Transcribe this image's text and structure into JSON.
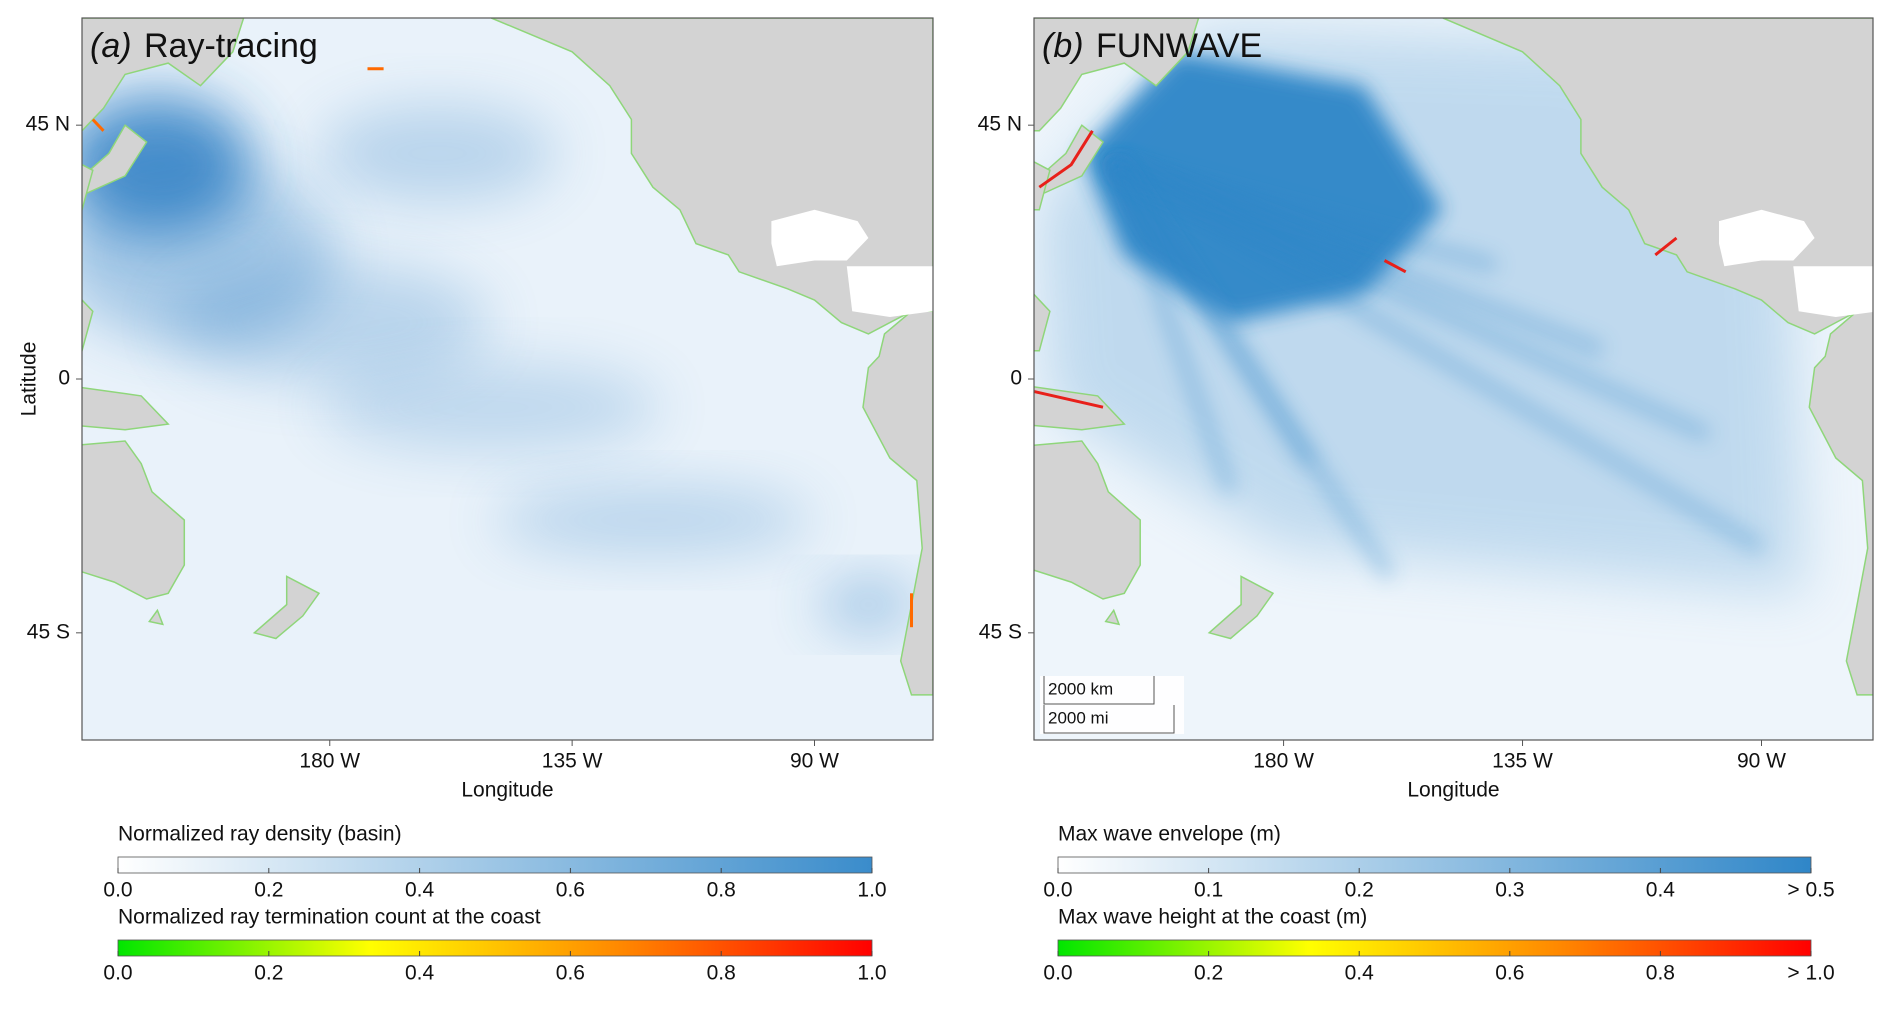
{
  "panels": [
    {
      "label": "(a)",
      "title": "Ray-tracing",
      "x_label": "Longitude",
      "y_label": "Latitude",
      "xlim": [
        -226,
        -68
      ],
      "ylim": [
        -64,
        64
      ],
      "xticks": [
        {
          "value": -180,
          "label": "180 W"
        },
        {
          "value": -135,
          "label": "135 W"
        },
        {
          "value": -90,
          "label": "90 W"
        }
      ],
      "yticks": [
        {
          "value": 45,
          "label": "45 N"
        },
        0,
        {
          "value": -45,
          "label": "45 S"
        }
      ],
      "colorbars": [
        {
          "title": "Normalized ray density (basin)",
          "range": [
            0,
            1
          ],
          "colors": [
            "#ffffff",
            "#3a8ccb"
          ],
          "ticks": [
            {
              "value": 0,
              "label": "0.0"
            },
            0.2,
            0.4,
            0.6,
            0.8,
            {
              "value": 1,
              "label": "1.0"
            }
          ]
        },
        {
          "title": "Normalized ray termination count at the coast",
          "range": [
            0,
            1
          ],
          "colors": [
            "#00e600",
            "#ffff00",
            "#ff8800",
            "#ff0000"
          ],
          "ticks": [
            {
              "value": 0,
              "label": "0.0"
            },
            0.2,
            0.4,
            0.6,
            0.8,
            {
              "value": 1,
              "label": "1.0"
            }
          ]
        }
      ]
    },
    {
      "label": "(b)",
      "title": "FUNWAVE",
      "x_label": "Longitude",
      "xlim": [
        -227,
        -69
      ],
      "ylim": [
        -64,
        64
      ],
      "xticks": [
        {
          "value": -180,
          "label": "180 W"
        },
        {
          "value": -135,
          "label": "135 W"
        },
        {
          "value": -90,
          "label": "90 W"
        }
      ],
      "yticks": [
        {
          "value": 45,
          "label": "45 N"
        },
        0,
        {
          "value": -45,
          "label": "45 S"
        }
      ],
      "scale_bar": [
        "2000 km",
        "2000 mi"
      ],
      "colorbars": [
        {
          "title": "Max wave envelope (m)",
          "range": [
            0,
            0.5
          ],
          "colors": [
            "#ffffff",
            "#2f86c8"
          ],
          "ticks": [
            {
              "value": 0,
              "label": "0.0"
            },
            0.1,
            0.2,
            0.3,
            0.4,
            {
              "value": 0.5,
              "label": "> 0.5"
            }
          ]
        },
        {
          "title": "Max wave height at the coast (m)",
          "range": [
            0,
            1
          ],
          "colors": [
            "#00e600",
            "#ffff00",
            "#ff8800",
            "#ff0000"
          ],
          "ticks": [
            {
              "value": 0,
              "label": "0.0"
            },
            0.2,
            0.4,
            0.6,
            0.8,
            {
              "value": 1,
              "label": "> 1.0"
            }
          ]
        }
      ]
    }
  ]
}
